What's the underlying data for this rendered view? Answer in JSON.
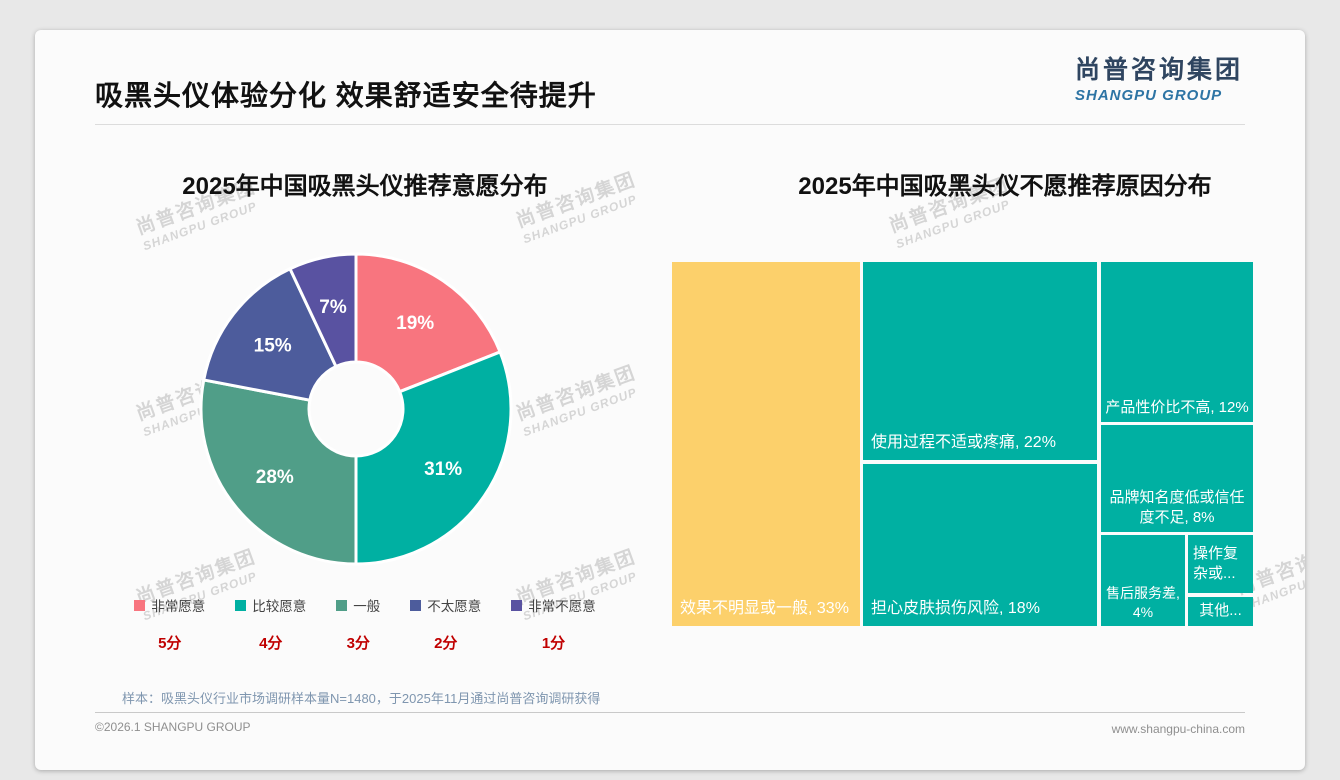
{
  "page": {
    "title": "吸黑头仪体验分化 效果舒适安全待提升",
    "logo": {
      "cn": "尚普咨询集团",
      "en": "SHANGPU GROUP"
    },
    "watermark": {
      "cn": "尚普咨询集团",
      "en": "SHANGPU GROUP"
    },
    "footnote": "样本：吸黑头仪行业市场调研样本量N=1480，于2025年11月通过尚普咨询调研获得",
    "footer": {
      "left": "©2026.1 SHANGPU GROUP",
      "right": "www.shangpu-china.com"
    }
  },
  "colors": {
    "very_willing": "#F8757F",
    "fairly_willing": "#00B0A2",
    "neutral": "#509E88",
    "not_very_willing": "#4D5C9C",
    "very_unwilling": "#5952A1",
    "treemap_teal": "#00B0A2",
    "treemap_yellow": "#FCD06B",
    "score_red": "#C00000"
  },
  "chart_data": [
    {
      "type": "pie",
      "subtype": "donut",
      "title": "2025年中国吸黑头仪推荐意愿分布",
      "legend_position": "bottom",
      "series": [
        {
          "label": "非常愿意",
          "score": "5分",
          "value": 19,
          "value_label": "19%",
          "color": "#F8757F"
        },
        {
          "label": "比较愿意",
          "score": "4分",
          "value": 31,
          "value_label": "31%",
          "color": "#00B0A2"
        },
        {
          "label": "一般",
          "score": "3分",
          "value": 28,
          "value_label": "28%",
          "color": "#509E88"
        },
        {
          "label": "不太愿意",
          "score": "2分",
          "value": 15,
          "value_label": "15%",
          "color": "#4D5C9C"
        },
        {
          "label": "非常不愿意",
          "score": "1分",
          "value": 7,
          "value_label": "7%",
          "color": "#5952A1"
        }
      ]
    },
    {
      "type": "treemap",
      "title": "2025年中国吸黑头仪不愿推荐原因分布",
      "items": [
        {
          "name": "效果不明显或一般",
          "value": 33,
          "label": "效果不明显或一般, 33%",
          "color": "#FCD06B"
        },
        {
          "name": "使用过程不适或疼痛",
          "value": 22,
          "label": "使用过程不适或疼痛, 22%",
          "color": "#00B0A2"
        },
        {
          "name": "担心皮肤损伤风险",
          "value": 18,
          "label": "担心皮肤损伤风险, 18%",
          "color": "#00B0A2"
        },
        {
          "name": "产品性价比不高",
          "value": 12,
          "label": "产品性价比不高, 12%",
          "color": "#00B0A2"
        },
        {
          "name": "品牌知名度低或信任度不足",
          "value": 8,
          "label": "品牌知名度低或信任度不足, 8%",
          "color": "#00B0A2"
        },
        {
          "name": "售后服务差",
          "value": 4,
          "label": "售后服务差, 4%",
          "color": "#00B0A2"
        },
        {
          "name": "操作复杂或…",
          "value": null,
          "label": "操作复杂或...",
          "color": "#00B0A2"
        },
        {
          "name": "其他",
          "value": null,
          "label": "其他...",
          "color": "#00B0A2"
        }
      ]
    }
  ]
}
